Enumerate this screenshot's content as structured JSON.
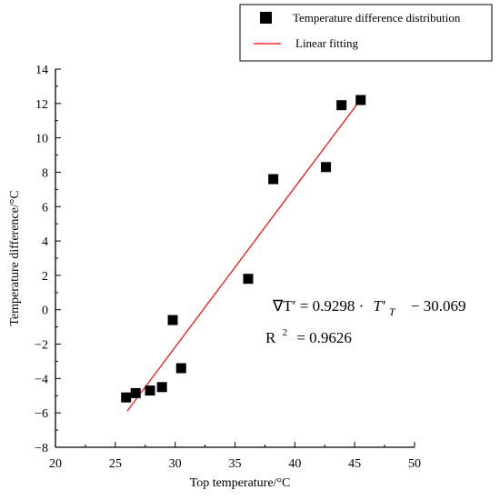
{
  "chart_data": {
    "type": "scatter",
    "title": "",
    "xlabel": "Top temperature/°C",
    "ylabel": "Temperature difference/°C",
    "xlim": [
      20,
      50
    ],
    "ylim": [
      -8,
      14
    ],
    "xticks": [
      20,
      25,
      30,
      35,
      40,
      45,
      50
    ],
    "yticks": [
      -8,
      -6,
      -4,
      -2,
      0,
      2,
      4,
      6,
      8,
      10,
      12,
      14
    ],
    "grid": false,
    "legend_position": "top-right",
    "series": [
      {
        "name": "Temperature difference distribution",
        "kind": "scatter",
        "marker": "square",
        "color": "#000000",
        "points": [
          {
            "x": 25.9,
            "y": -5.1
          },
          {
            "x": 26.7,
            "y": -4.85
          },
          {
            "x": 27.9,
            "y": -4.7
          },
          {
            "x": 28.9,
            "y": -4.5
          },
          {
            "x": 29.8,
            "y": -0.6
          },
          {
            "x": 30.5,
            "y": -3.4
          },
          {
            "x": 36.1,
            "y": 1.8
          },
          {
            "x": 38.2,
            "y": 7.6
          },
          {
            "x": 42.6,
            "y": 8.3
          },
          {
            "x": 43.9,
            "y": 11.9
          },
          {
            "x": 45.5,
            "y": 12.2
          }
        ]
      },
      {
        "name": "Linear fitting",
        "kind": "line",
        "color": "#ff0000",
        "slope": 0.9298,
        "intercept": -30.069,
        "x_range": [
          26,
          45.4
        ]
      }
    ],
    "annotations": {
      "equation_left": "∇T′ = 0.9298 ·",
      "equation_mid": "T′",
      "equation_sub": "T",
      "equation_right": "− 30.069",
      "r2_label": "R",
      "r2_sup": "2",
      "r2_value": "= 0.9626"
    }
  }
}
